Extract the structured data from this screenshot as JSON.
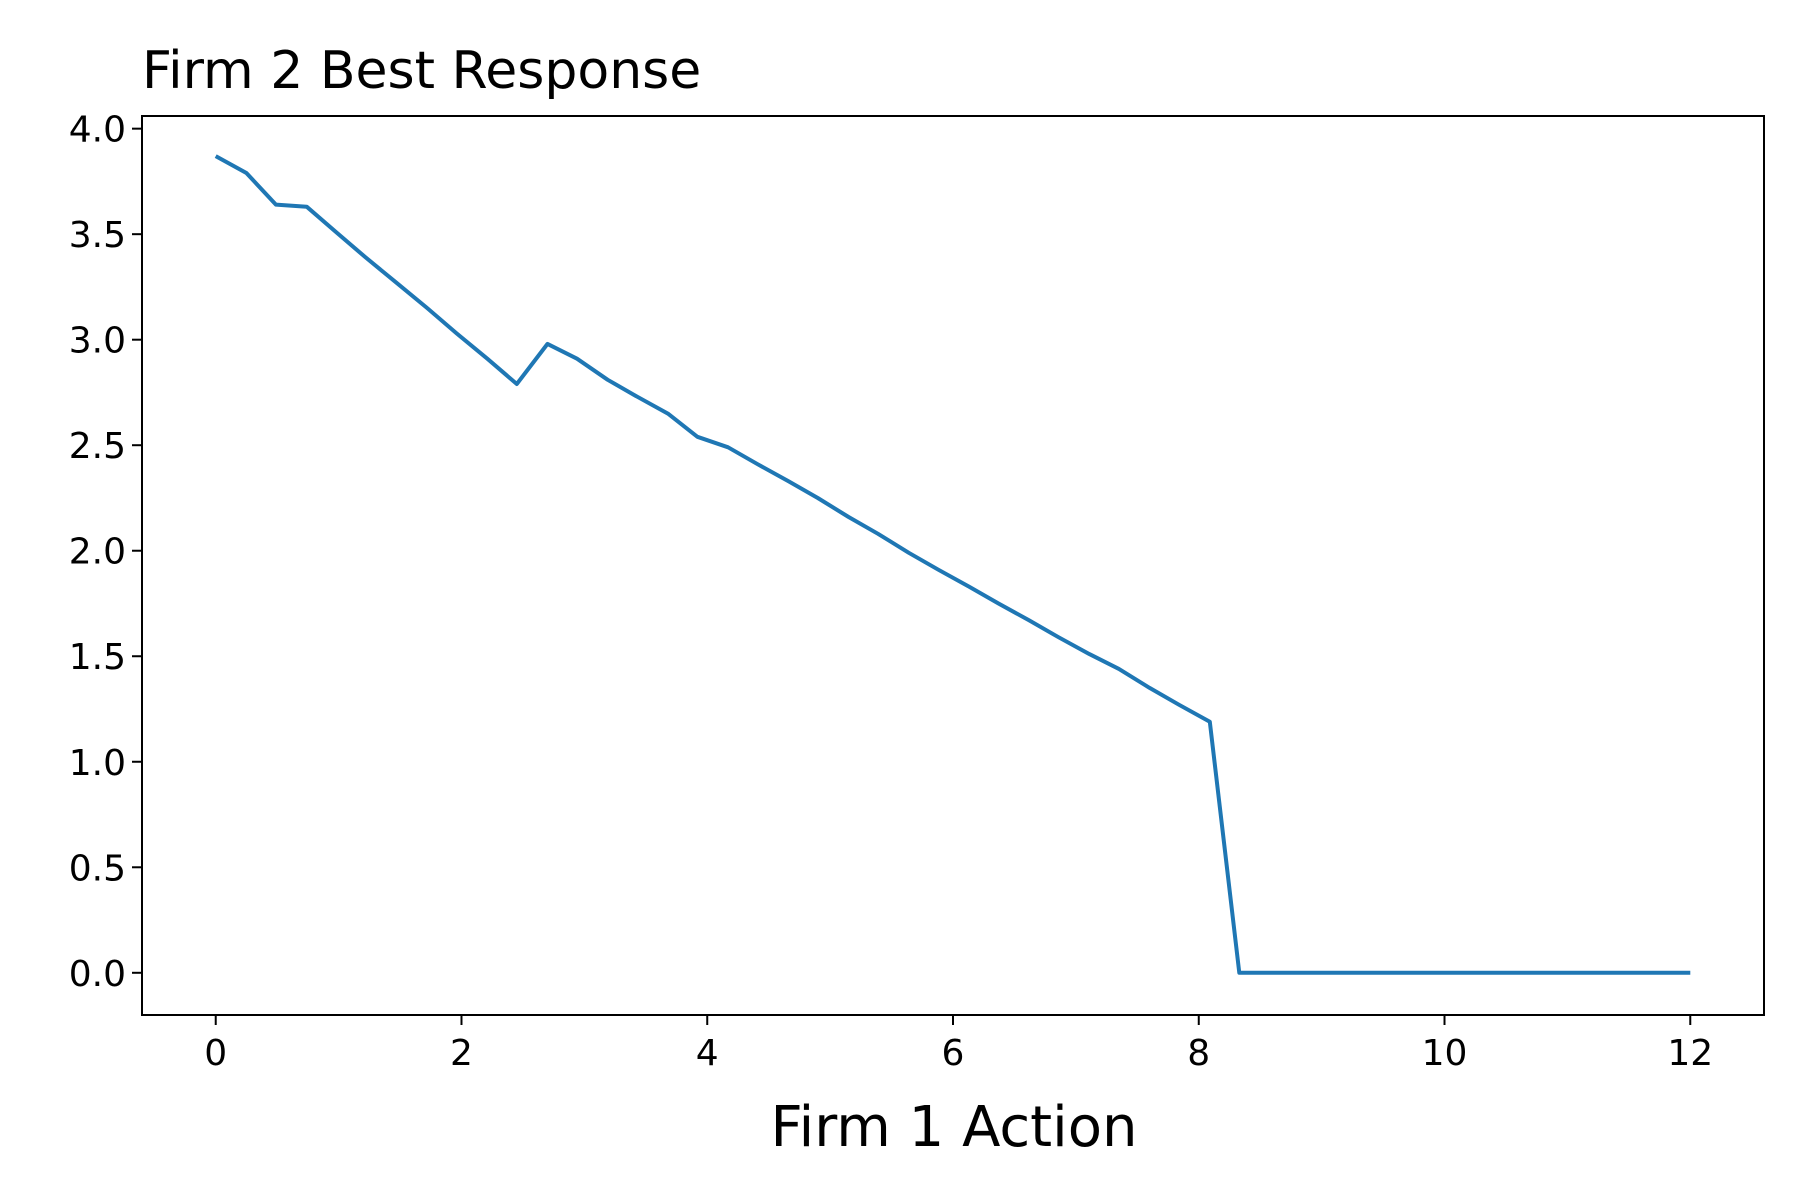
{
  "chart_data": {
    "type": "line",
    "title": "Firm 2 Best Response",
    "xlabel": "Firm 1 Action",
    "ylabel": "",
    "xlim": [
      -0.6,
      12.6
    ],
    "ylim": [
      -0.2,
      4.06
    ],
    "xticks": [
      0,
      2,
      4,
      6,
      8,
      10,
      12
    ],
    "xtick_labels": [
      "0",
      "2",
      "4",
      "6",
      "8",
      "10",
      "12"
    ],
    "yticks": [
      0.0,
      0.5,
      1.0,
      1.5,
      2.0,
      2.5,
      3.0,
      3.5,
      4.0
    ],
    "ytick_labels": [
      "0.0",
      "0.5",
      "1.0",
      "1.5",
      "2.0",
      "2.5",
      "3.0",
      "3.5",
      "4.0"
    ],
    "grid": false,
    "series": [
      {
        "color": "#1f77b4",
        "x": [
          0,
          0.25,
          0.49,
          0.74,
          0.98,
          1.22,
          1.47,
          1.72,
          1.96,
          2.21,
          2.45,
          2.7,
          2.94,
          3.19,
          3.43,
          3.68,
          3.92,
          4.17,
          4.41,
          4.66,
          4.9,
          5.15,
          5.39,
          5.64,
          5.88,
          6.13,
          6.37,
          6.62,
          6.86,
          7.11,
          7.35,
          7.6,
          7.84,
          8.09,
          8.33,
          8.58,
          9.0,
          10.0,
          11.0,
          12.0
        ],
        "y": [
          3.87,
          3.79,
          3.64,
          3.63,
          3.51,
          3.39,
          3.27,
          3.15,
          3.03,
          2.91,
          2.79,
          2.98,
          2.91,
          2.81,
          2.73,
          2.65,
          2.54,
          2.49,
          2.41,
          2.33,
          2.25,
          2.16,
          2.08,
          1.99,
          1.91,
          1.83,
          1.75,
          1.67,
          1.59,
          1.51,
          1.44,
          1.35,
          1.27,
          1.19,
          0.0,
          0.0,
          0.0,
          0.0,
          0.0,
          0.0
        ]
      }
    ]
  }
}
